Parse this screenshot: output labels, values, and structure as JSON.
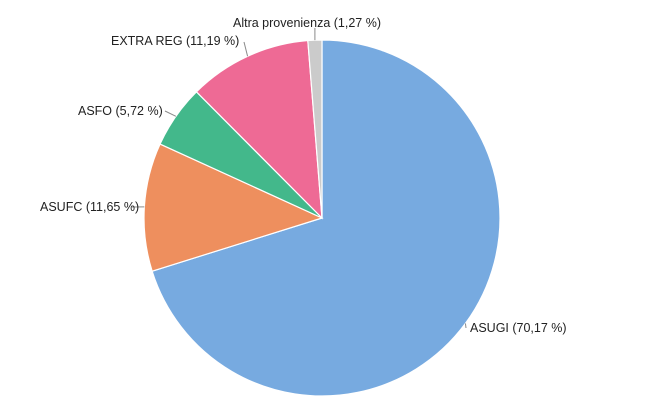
{
  "chart_data": {
    "type": "pie",
    "title": "",
    "start_angle_deg": 0,
    "direction": "clockwise",
    "slices": [
      {
        "name": "ASUGI",
        "value": 70.17,
        "label": "ASUGI (70,17 %)",
        "color": "#77aae0"
      },
      {
        "name": "ASUFC",
        "value": 11.65,
        "label": "ASUFC (11,65 %)",
        "color": "#ee8f5e"
      },
      {
        "name": "ASFO",
        "value": 5.72,
        "label": "ASFO (5,72 %)",
        "color": "#43b88b"
      },
      {
        "name": "EXTRA REG",
        "value": 11.19,
        "label": "EXTRA REG (11,19 %)",
        "color": "#ee6a95"
      },
      {
        "name": "Altra provenienza",
        "value": 1.27,
        "label": "Altra provenienza (1,27 %)",
        "color": "#cbcbcb"
      }
    ],
    "legend": "none",
    "data_labels": "outside with leader lines"
  }
}
